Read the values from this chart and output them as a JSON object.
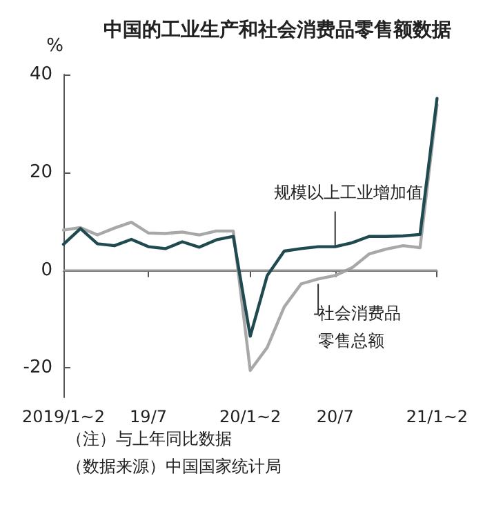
{
  "chart_data": {
    "type": "line",
    "title": "中国的工业生产和社会消费品零售额数据",
    "ylabel": "%",
    "categories": [
      "2019/1~2",
      null,
      null,
      null,
      null,
      "19/7",
      null,
      null,
      null,
      null,
      null,
      "20/1~2",
      null,
      null,
      null,
      null,
      "20/7",
      null,
      null,
      null,
      null,
      null,
      "21/1~2"
    ],
    "series": [
      {
        "name": "规模以上工业增加值",
        "color": "#1f4a4f",
        "values": [
          5.3,
          8.5,
          5.4,
          5.0,
          6.3,
          4.8,
          4.4,
          5.8,
          4.7,
          6.2,
          6.9,
          -13.5,
          -1.1,
          3.9,
          4.4,
          4.8,
          4.8,
          5.6,
          6.9,
          6.9,
          7.0,
          7.3,
          35.1
        ]
      },
      {
        "name": "社会消费品零售总额",
        "color": "#a8a8a8",
        "values": [
          8.2,
          8.7,
          7.2,
          8.6,
          9.8,
          7.6,
          7.5,
          7.8,
          7.2,
          8.0,
          8.0,
          -20.5,
          -15.8,
          -7.5,
          -2.8,
          -1.8,
          -1.1,
          0.5,
          3.3,
          4.3,
          5.0,
          4.6,
          33.8
        ]
      }
    ],
    "ylim": [
      -26,
      40
    ],
    "yticks": [
      -20,
      0,
      20,
      40
    ],
    "grid": false,
    "legend": false,
    "marker": "none",
    "line_style": "solid",
    "ref_lines": [
      {
        "axis": "y",
        "value": 0,
        "color": "#999999"
      }
    ],
    "annotations": [
      "（注）与上年同比数据",
      "（数据来源）中国国家统计局"
    ]
  }
}
